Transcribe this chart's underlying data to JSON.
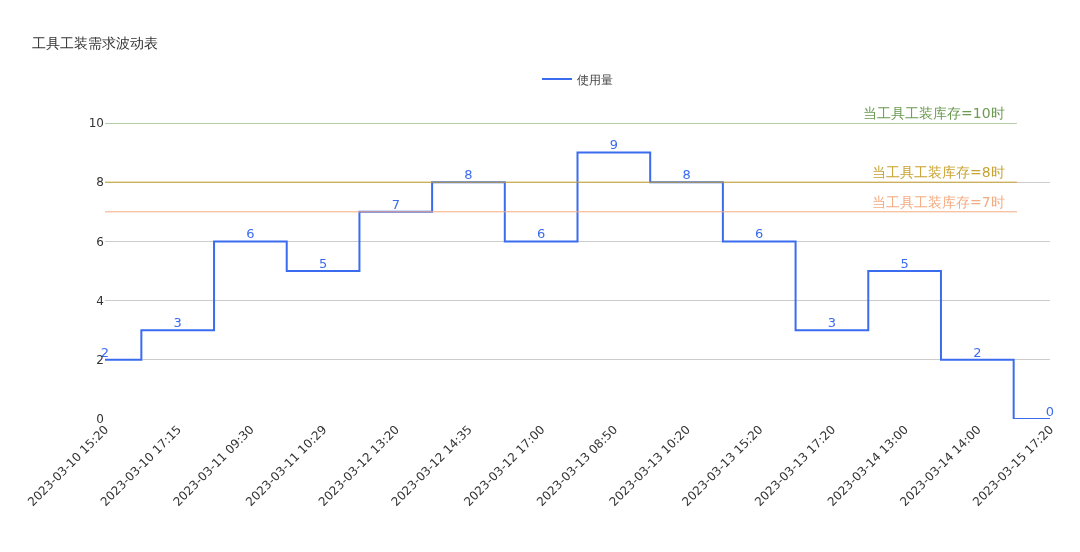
{
  "chart_data": {
    "type": "step",
    "title": "工具工装需求波动表",
    "categories": [
      "2023-03-10 15:20",
      "2023-03-10 17:15",
      "2023-03-11 09:30",
      "2023-03-11 10:29",
      "2023-03-12 13:20",
      "2023-03-12 14:35",
      "2023-03-12 17:00",
      "2023-03-13 08:50",
      "2023-03-13 10:20",
      "2023-03-13 15:20",
      "2023-03-13 17:20",
      "2023-03-14 13:00",
      "2023-03-14 14:00",
      "2023-03-15 17:20"
    ],
    "series": [
      {
        "name": "使用量",
        "color": "#3b6cf0",
        "values": [
          2,
          3,
          6,
          5,
          7,
          8,
          6,
          9,
          8,
          6,
          3,
          5,
          2,
          0
        ]
      }
    ],
    "ylim": [
      0,
      10
    ],
    "yticks": [
      0,
      2,
      4,
      6,
      8,
      10
    ],
    "ref_lines": [
      {
        "axis": "y",
        "value": 10,
        "label": "当工具工装库存=10时",
        "color": "#6b9a51"
      },
      {
        "axis": "y",
        "value": 8,
        "label": "当工具工装库存=8时",
        "color": "#c9a22f"
      },
      {
        "axis": "y",
        "value": 7,
        "label": "当工具工装库存=7时",
        "color": "#f5ab80"
      }
    ],
    "data_labels": true,
    "grid": "y",
    "legend": "top",
    "marker": "none",
    "line_style": "solid"
  }
}
